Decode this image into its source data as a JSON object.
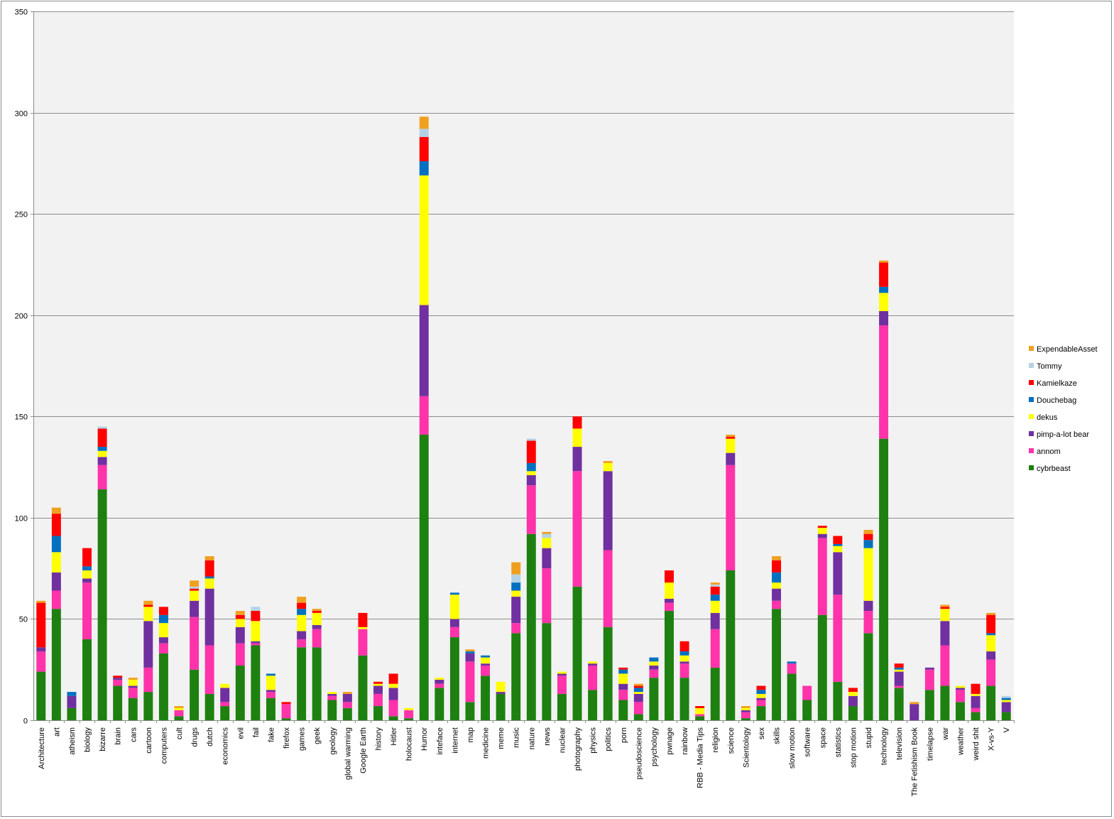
{
  "chart_data": {
    "type": "bar",
    "stacked": true,
    "title": "",
    "xlabel": "",
    "ylabel": "",
    "ylim": [
      0,
      350
    ],
    "y_ticks": [
      0,
      50,
      100,
      150,
      200,
      250,
      300,
      350
    ],
    "grid": true,
    "legend_position": "right",
    "categories": [
      "Architecture",
      "art",
      "atheism",
      "biology",
      "bizarre",
      "brain",
      "cars",
      "cartoon",
      "computers",
      "cult",
      "drugs",
      "dutch",
      "economics",
      "evil",
      "fail",
      "fake",
      "firefox",
      "games",
      "geek",
      "geology",
      "global warming",
      "Google Earth",
      "history",
      "Hitler",
      "holocaust",
      "Humor",
      "inteface",
      "internet",
      "map",
      "medicine",
      "meme",
      "music",
      "nature",
      "news",
      "nuclear",
      "photography",
      "physics",
      "politics",
      "porn",
      "pseudoscience",
      "psychology",
      "pwnage",
      "rainbow",
      "RBB - Media Tips",
      "religion",
      "science",
      "Scientology",
      "sex",
      "skills",
      "slow motion",
      "software",
      "space",
      "statistics",
      "stop motion",
      "stupid",
      "technology",
      "television",
      "The Fetishism Book",
      "timelapse",
      "war",
      "weather",
      "weird shit",
      "X-vs-Y",
      "V"
    ],
    "series": [
      {
        "name": "cybrbeast",
        "color": "#1e8010",
        "values": [
          24,
          55,
          6,
          40,
          114,
          17,
          11,
          14,
          33,
          2,
          25,
          13,
          7,
          27,
          37,
          11,
          1,
          36,
          36,
          10,
          6,
          32,
          7,
          2,
          1,
          141,
          16,
          41,
          9,
          22,
          13,
          43,
          92,
          48,
          13,
          66,
          15,
          46,
          10,
          3,
          21,
          54,
          21,
          2,
          26,
          74,
          1,
          7,
          55,
          23,
          10,
          52,
          19,
          7,
          43,
          139,
          16,
          0,
          15,
          17,
          9,
          4,
          17,
          4
        ]
      },
      {
        "name": "annom",
        "color": "#ff33aa",
        "values": [
          10,
          9,
          0,
          28,
          12,
          3,
          5,
          12,
          5,
          3,
          26,
          24,
          2,
          11,
          1,
          3,
          7,
          4,
          9,
          2,
          3,
          13,
          6,
          8,
          4,
          19,
          2,
          5,
          20,
          5,
          0,
          5,
          24,
          27,
          9,
          57,
          12,
          38,
          5,
          6,
          4,
          4,
          7,
          1,
          19,
          52,
          3,
          3,
          4,
          5,
          7,
          38,
          43,
          0,
          11,
          56,
          1,
          0,
          10,
          20,
          6,
          2,
          13,
          0
        ]
      },
      {
        "name": "pimp-a-lot bear",
        "color": "#7030a0",
        "values": [
          2,
          9,
          6,
          2,
          4,
          1,
          1,
          23,
          3,
          0,
          8,
          28,
          7,
          8,
          1,
          1,
          0,
          4,
          2,
          1,
          4,
          0,
          4,
          6,
          0,
          45,
          2,
          4,
          4,
          1,
          1,
          13,
          5,
          10,
          1,
          12,
          1,
          39,
          3,
          4,
          2,
          2,
          1,
          0,
          8,
          6,
          1,
          1,
          6,
          0,
          0,
          2,
          21,
          5,
          5,
          7,
          7,
          8,
          1,
          12,
          1,
          6,
          4,
          5
        ]
      },
      {
        "name": "dekus",
        "color": "#ffff00",
        "values": [
          0,
          10,
          0,
          4,
          3,
          0,
          3,
          7,
          7,
          1,
          5,
          5,
          2,
          4,
          10,
          7,
          0,
          8,
          6,
          1,
          0,
          1,
          1,
          2,
          1,
          64,
          1,
          12,
          0,
          3,
          5,
          3,
          2,
          5,
          1,
          9,
          1,
          4,
          5,
          1,
          2,
          8,
          3,
          3,
          6,
          7,
          1,
          2,
          3,
          0,
          0,
          3,
          3,
          2,
          26,
          9,
          1,
          0,
          0,
          6,
          1,
          1,
          8,
          1
        ]
      },
      {
        "name": "Douchebag",
        "color": "#0070c0",
        "values": [
          0,
          8,
          2,
          2,
          2,
          0,
          0,
          0,
          4,
          0,
          0,
          1,
          0,
          0,
          0,
          1,
          0,
          3,
          0,
          0,
          0,
          0,
          0,
          0,
          0,
          7,
          0,
          1,
          1,
          1,
          0,
          4,
          4,
          0,
          0,
          0,
          0,
          0,
          2,
          2,
          2,
          0,
          2,
          0,
          3,
          0,
          0,
          2,
          5,
          1,
          0,
          0,
          1,
          0,
          4,
          3,
          1,
          0,
          0,
          0,
          0,
          0,
          1,
          1
        ]
      },
      {
        "name": "Kamielkaze",
        "color": "#ff0000",
        "values": [
          22,
          11,
          0,
          9,
          9,
          1,
          0,
          1,
          4,
          0,
          1,
          8,
          0,
          2,
          5,
          0,
          1,
          3,
          1,
          0,
          0,
          7,
          1,
          5,
          0,
          12,
          0,
          0,
          0,
          0,
          0,
          0,
          11,
          0,
          0,
          6,
          0,
          0,
          1,
          1,
          0,
          6,
          5,
          1,
          4,
          1,
          0,
          2,
          6,
          0,
          0,
          1,
          4,
          2,
          3,
          12,
          2,
          0,
          0,
          1,
          0,
          5,
          9,
          0
        ]
      },
      {
        "name": "Tommy",
        "color": "#b4d2e6",
        "values": [
          0,
          0,
          0,
          0,
          1,
          0,
          0,
          0,
          0,
          0,
          1,
          0,
          0,
          0,
          2,
          0,
          0,
          0,
          0,
          0,
          0,
          0,
          0,
          0,
          0,
          4,
          0,
          0,
          0,
          0,
          0,
          4,
          1,
          2,
          0,
          0,
          0,
          0,
          0,
          0,
          0,
          0,
          0,
          0,
          1,
          0,
          0,
          0,
          0,
          0,
          0,
          0,
          0,
          0,
          0,
          0,
          0,
          0,
          0,
          0,
          0,
          0,
          0,
          1
        ]
      },
      {
        "name": "ExpendableAsset",
        "color": "#f0a020",
        "values": [
          1,
          3,
          0,
          0,
          0,
          0,
          1,
          2,
          0,
          1,
          3,
          2,
          0,
          2,
          0,
          0,
          0,
          3,
          1,
          0,
          1,
          0,
          0,
          0,
          0,
          6,
          0,
          0,
          1,
          0,
          0,
          6,
          0,
          1,
          0,
          0,
          0,
          1,
          0,
          1,
          0,
          0,
          0,
          0,
          1,
          1,
          1,
          0,
          2,
          0,
          0,
          0,
          0,
          0,
          2,
          1,
          0,
          1,
          0,
          1,
          0,
          0,
          1,
          0
        ]
      }
    ]
  }
}
